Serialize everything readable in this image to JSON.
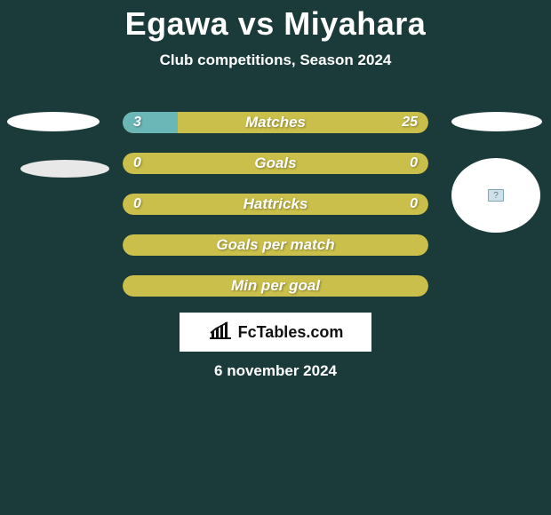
{
  "header": {
    "title": "Egawa vs Miyahara",
    "subtitle": "Club competitions, Season 2024"
  },
  "colors": {
    "background": "#1b3a3a",
    "bar_base": "#c9bf4a",
    "bar_fill": "#6bb6b6",
    "text": "#ffffff",
    "logo_bg": "#ffffff",
    "logo_text": "#111111"
  },
  "bars": [
    {
      "label": "Matches",
      "left_value": "3",
      "right_value": "25",
      "left_pct": 18,
      "right_pct": 0,
      "show_values": true
    },
    {
      "label": "Goals",
      "left_value": "0",
      "right_value": "0",
      "left_pct": 0,
      "right_pct": 0,
      "show_values": true
    },
    {
      "label": "Hattricks",
      "left_value": "0",
      "right_value": "0",
      "left_pct": 0,
      "right_pct": 0,
      "show_values": true
    },
    {
      "label": "Goals per match",
      "left_value": "",
      "right_value": "",
      "left_pct": 0,
      "right_pct": 0,
      "show_values": false
    },
    {
      "label": "Min per goal",
      "left_value": "",
      "right_value": "",
      "left_pct": 0,
      "right_pct": 0,
      "show_values": false
    }
  ],
  "logo": {
    "text": "FcTables.com"
  },
  "date": "6 november 2024",
  "flag_glyph": "?"
}
